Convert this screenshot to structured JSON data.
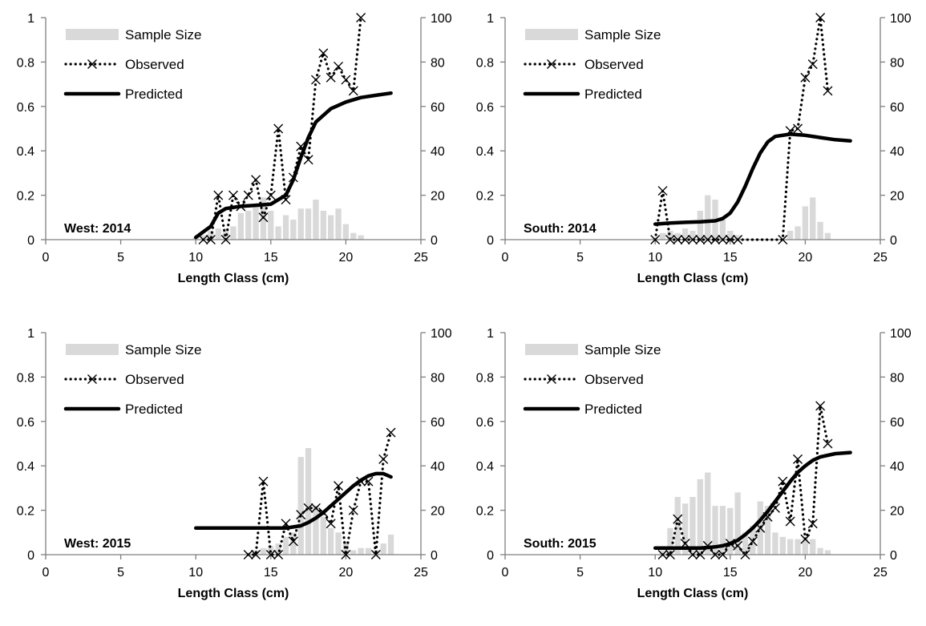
{
  "figure": {
    "legend": {
      "sample_size": "Sample Size",
      "observed": "Observed",
      "predicted": "Predicted"
    },
    "colors": {
      "bars": "#d9d9d9",
      "lines": "#000000",
      "axis": "#7f7f7f"
    }
  },
  "chart_data": [
    {
      "type": "bar",
      "panel": "West: 2014",
      "xlabel": "Length Class (cm)",
      "xlim": [
        0,
        25
      ],
      "xticks": [
        0,
        5,
        10,
        15,
        20,
        25
      ],
      "ylim": [
        0,
        1
      ],
      "yticks": [
        0,
        0.2,
        0.4,
        0.6,
        0.8,
        1
      ],
      "y2lim": [
        0,
        100
      ],
      "y2ticks": [
        0,
        20,
        40,
        60,
        80,
        100
      ],
      "series": [
        {
          "name": "Sample Size",
          "axis": "right",
          "x": [
            10,
            10.5,
            11,
            11.5,
            12,
            12.5,
            13,
            13.5,
            14,
            14.5,
            15,
            15.5,
            16,
            16.5,
            17,
            17.5,
            18,
            18.5,
            19,
            19.5,
            20,
            20.5,
            21
          ],
          "values": [
            1,
            2,
            4,
            5,
            5,
            6,
            12,
            13,
            16,
            19,
            13,
            6,
            11,
            9,
            14,
            14,
            18,
            13,
            11,
            14,
            7,
            3,
            2
          ]
        },
        {
          "name": "Observed",
          "axis": "left",
          "x": [
            10.5,
            11,
            11.5,
            12,
            12.5,
            13,
            13.5,
            14,
            14.5,
            15,
            15.5,
            16,
            16.5,
            17,
            17.5,
            18,
            18.5,
            19,
            19.5,
            20,
            20.5,
            21
          ],
          "values": [
            0,
            0,
            0.2,
            0,
            0.2,
            0.15,
            0.2,
            0.27,
            0.1,
            0.2,
            0.5,
            0.18,
            0.28,
            0.42,
            0.36,
            0.72,
            0.84,
            0.73,
            0.78,
            0.72,
            0.67,
            1.0
          ]
        },
        {
          "name": "Predicted",
          "axis": "left",
          "x": [
            10,
            11,
            11.5,
            12,
            13,
            14,
            15,
            16,
            16.5,
            17,
            17.5,
            18,
            19,
            20,
            21,
            22,
            23
          ],
          "values": [
            0.01,
            0.06,
            0.12,
            0.14,
            0.15,
            0.155,
            0.16,
            0.2,
            0.27,
            0.37,
            0.46,
            0.53,
            0.59,
            0.62,
            0.64,
            0.65,
            0.66
          ]
        }
      ]
    },
    {
      "type": "bar",
      "panel": "South: 2014",
      "xlabel": "Length Class (cm)",
      "xlim": [
        0,
        25
      ],
      "xticks": [
        0,
        5,
        10,
        15,
        20,
        25
      ],
      "ylim": [
        0,
        1
      ],
      "yticks": [
        0,
        0.2,
        0.4,
        0.6,
        0.8,
        1
      ],
      "y2lim": [
        0,
        100
      ],
      "y2ticks": [
        0,
        20,
        40,
        60,
        80,
        100
      ],
      "series": [
        {
          "name": "Sample Size",
          "axis": "right",
          "x": [
            10,
            10.5,
            11,
            11.5,
            12,
            12.5,
            13,
            13.5,
            14,
            14.5,
            15,
            15.5,
            19,
            19.5,
            20,
            20.5,
            21,
            21.5
          ],
          "values": [
            1,
            3,
            4,
            3,
            5,
            4,
            13,
            20,
            18,
            9,
            4,
            2,
            4,
            6,
            15,
            19,
            8,
            3
          ]
        },
        {
          "name": "Observed",
          "axis": "left",
          "x": [
            10,
            10.5,
            11,
            11.5,
            12,
            12.5,
            13,
            13.5,
            14,
            14.5,
            15,
            15.5,
            18.5,
            19,
            19.5,
            20,
            20.5,
            21,
            21.5
          ],
          "values": [
            0,
            0.22,
            0,
            0,
            0,
            0,
            0,
            0,
            0,
            0,
            0,
            0,
            0,
            0.49,
            0.5,
            0.73,
            0.79,
            1.0,
            0.67
          ]
        },
        {
          "name": "Predicted",
          "axis": "left",
          "x": [
            10,
            11,
            12,
            13,
            14,
            14.5,
            15,
            15.5,
            16,
            16.5,
            17,
            17.5,
            18,
            19,
            20,
            21,
            22,
            23
          ],
          "values": [
            0.07,
            0.075,
            0.078,
            0.08,
            0.085,
            0.095,
            0.12,
            0.17,
            0.24,
            0.32,
            0.39,
            0.44,
            0.465,
            0.475,
            0.47,
            0.46,
            0.45,
            0.445
          ]
        }
      ]
    },
    {
      "type": "bar",
      "panel": "West: 2015",
      "xlabel": "Length Class (cm)",
      "xlim": [
        0,
        25
      ],
      "xticks": [
        0,
        5,
        10,
        15,
        20,
        25
      ],
      "ylim": [
        0,
        1
      ],
      "yticks": [
        0,
        0.2,
        0.4,
        0.6,
        0.8,
        1
      ],
      "y2lim": [
        0,
        100
      ],
      "y2ticks": [
        0,
        20,
        40,
        60,
        80,
        100
      ],
      "series": [
        {
          "name": "Sample Size",
          "axis": "right",
          "x": [
            13.5,
            14,
            14.5,
            15,
            15.5,
            16,
            16.5,
            17,
            17.5,
            18,
            18.5,
            19,
            19.5,
            20,
            20.5,
            21,
            21.5,
            22,
            22.5,
            23
          ],
          "values": [
            1,
            2,
            3,
            4,
            5,
            8,
            10,
            44,
            48,
            22,
            17,
            12,
            10,
            6,
            2,
            3,
            3,
            2,
            5,
            9
          ]
        },
        {
          "name": "Observed",
          "axis": "left",
          "x": [
            13.5,
            14,
            14.5,
            15,
            15.5,
            16,
            16.5,
            17,
            17.5,
            18,
            18.5,
            19,
            19.5,
            20,
            20.5,
            21,
            21.5,
            22,
            22.5,
            23
          ],
          "values": [
            0,
            0,
            0.33,
            0,
            0,
            0.14,
            0.06,
            0.18,
            0.21,
            0.21,
            0.19,
            0.14,
            0.31,
            0,
            0.2,
            0.33,
            0.33,
            0,
            0.43,
            0.55
          ]
        },
        {
          "name": "Predicted",
          "axis": "left",
          "x": [
            10,
            12,
            14,
            15,
            16,
            16.5,
            17,
            17.5,
            18,
            18.5,
            19,
            19.5,
            20,
            20.5,
            21,
            21.5,
            22,
            22.5,
            23
          ],
          "values": [
            0.12,
            0.12,
            0.12,
            0.12,
            0.12,
            0.125,
            0.13,
            0.145,
            0.165,
            0.19,
            0.22,
            0.25,
            0.28,
            0.31,
            0.335,
            0.355,
            0.365,
            0.365,
            0.35
          ]
        }
      ]
    },
    {
      "type": "bar",
      "panel": "South: 2015",
      "xlabel": "Length Class (cm)",
      "xlim": [
        0,
        25
      ],
      "xticks": [
        0,
        5,
        10,
        15,
        20,
        25
      ],
      "ylim": [
        0,
        1
      ],
      "yticks": [
        0,
        0.2,
        0.4,
        0.6,
        0.8,
        1
      ],
      "y2lim": [
        0,
        100
      ],
      "y2ticks": [
        0,
        20,
        40,
        60,
        80,
        100
      ],
      "series": [
        {
          "name": "Sample Size",
          "axis": "right",
          "x": [
            10.5,
            11,
            11.5,
            12,
            12.5,
            13,
            13.5,
            14,
            14.5,
            15,
            15.5,
            16,
            16.5,
            17,
            17.5,
            18,
            18.5,
            19,
            19.5,
            20,
            20.5,
            21,
            21.5
          ],
          "values": [
            2,
            12,
            26,
            23,
            26,
            34,
            37,
            22,
            22,
            21,
            28,
            10,
            13,
            24,
            22,
            10,
            8,
            7,
            7,
            8,
            7,
            3,
            2
          ]
        },
        {
          "name": "Observed",
          "axis": "left",
          "x": [
            10.5,
            11,
            11.5,
            12,
            12.5,
            13,
            13.5,
            14,
            14.5,
            15,
            15.5,
            16,
            16.5,
            17,
            17.5,
            18,
            18.5,
            19,
            19.5,
            20,
            20.5,
            21,
            21.5
          ],
          "values": [
            0,
            0,
            0.16,
            0.05,
            0,
            0,
            0.04,
            0,
            0,
            0.05,
            0.04,
            0,
            0.06,
            0.12,
            0.17,
            0.21,
            0.33,
            0.15,
            0.43,
            0.07,
            0.14,
            0.67,
            0.5
          ]
        },
        {
          "name": "Predicted",
          "axis": "left",
          "x": [
            10,
            11,
            12,
            13,
            14,
            14.5,
            15,
            15.5,
            16,
            16.5,
            17,
            17.5,
            18,
            18.5,
            19,
            19.5,
            20,
            20.5,
            21,
            22,
            23
          ],
          "values": [
            0.03,
            0.03,
            0.03,
            0.03,
            0.035,
            0.04,
            0.05,
            0.065,
            0.09,
            0.12,
            0.155,
            0.195,
            0.24,
            0.285,
            0.33,
            0.37,
            0.4,
            0.425,
            0.44,
            0.455,
            0.46
          ]
        }
      ]
    }
  ]
}
